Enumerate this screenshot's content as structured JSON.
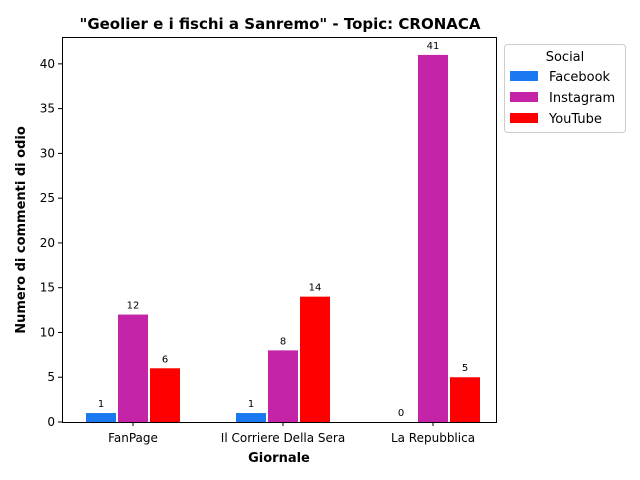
{
  "chart_data": {
    "type": "bar",
    "title": "\"Geolier e i fischi a Sanremo\" - Topic: CRONACA",
    "xlabel": "Giornale",
    "ylabel": "Numero di commenti di odio",
    "categories": [
      "FanPage",
      "Il Corriere Della Sera",
      "La Repubblica"
    ],
    "series": [
      {
        "name": "Facebook",
        "color": "#1a78f0",
        "values": [
          1,
          1,
          0
        ]
      },
      {
        "name": "Instagram",
        "color": "#c425a8",
        "values": [
          12,
          8,
          41
        ]
      },
      {
        "name": "YouTube",
        "color": "#ff0000",
        "values": [
          6,
          14,
          5
        ]
      }
    ],
    "ylim": [
      0,
      43
    ],
    "yticks": [
      0,
      5,
      10,
      15,
      20,
      25,
      30,
      35,
      40
    ],
    "grid": false,
    "legend": {
      "title": "Social",
      "placement": "outside-top-right"
    }
  }
}
